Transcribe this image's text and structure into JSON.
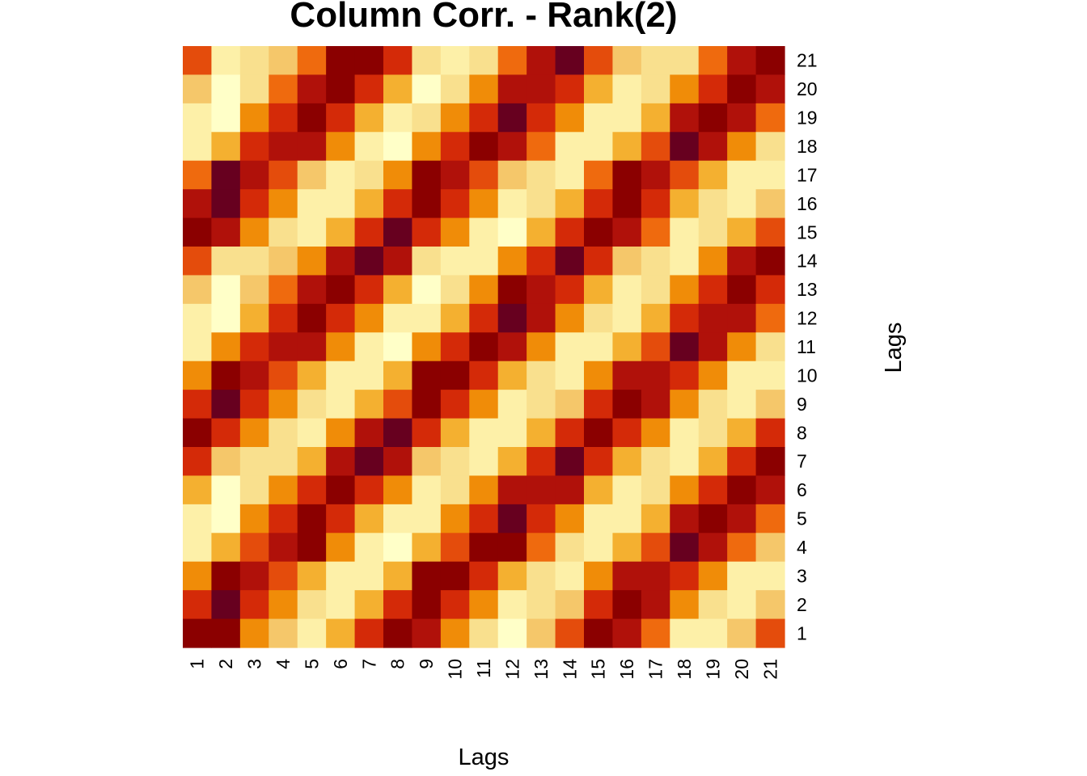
{
  "chart_data": {
    "type": "heatmap",
    "title": "Column Corr. - Rank(2)",
    "xlabel": "Lags",
    "ylabel": "Lags",
    "x_ticks": [
      "1",
      "2",
      "3",
      "4",
      "5",
      "6",
      "7",
      "8",
      "9",
      "10",
      "11",
      "12",
      "13",
      "14",
      "15",
      "16",
      "17",
      "18",
      "19",
      "20",
      "21"
    ],
    "y_ticks": [
      "1",
      "2",
      "3",
      "4",
      "5",
      "6",
      "7",
      "8",
      "9",
      "10",
      "11",
      "12",
      "13",
      "14",
      "15",
      "16",
      "17",
      "18",
      "19",
      "20",
      "21"
    ],
    "color_scale": [
      "#67001F",
      "#8B0000",
      "#B0110A",
      "#D42A08",
      "#E44C0C",
      "#EF6A0E",
      "#F08C08",
      "#F4B030",
      "#F5C76A",
      "#F9E08E",
      "#FDF0A8",
      "#FFFFC8"
    ],
    "color_scale_note": "heat colors: index 0 = darkest red, 11 = lightest yellow",
    "grid": false,
    "rows_top_to_bottom": [
      [
        4,
        10,
        9,
        8,
        5,
        1,
        1,
        3,
        9,
        10,
        9,
        5,
        2,
        0,
        4,
        8,
        9,
        9,
        5,
        2,
        1
      ],
      [
        8,
        11,
        9,
        5,
        2,
        1,
        3,
        7,
        11,
        9,
        6,
        2,
        2,
        3,
        7,
        10,
        9,
        6,
        3,
        1,
        2
      ],
      [
        10,
        11,
        6,
        3,
        1,
        3,
        7,
        10,
        9,
        6,
        3,
        0,
        3,
        6,
        10,
        10,
        7,
        2,
        1,
        2,
        5
      ],
      [
        10,
        7,
        3,
        2,
        2,
        6,
        10,
        11,
        6,
        3,
        1,
        2,
        5,
        10,
        10,
        7,
        4,
        0,
        2,
        6,
        9
      ],
      [
        5,
        0,
        2,
        4,
        8,
        10,
        9,
        6,
        1,
        2,
        4,
        8,
        9,
        10,
        5,
        1,
        2,
        4,
        7,
        10,
        10
      ],
      [
        2,
        0,
        3,
        6,
        10,
        10,
        7,
        3,
        1,
        3,
        6,
        10,
        9,
        7,
        3,
        1,
        3,
        7,
        9,
        10,
        8
      ],
      [
        1,
        2,
        6,
        9,
        10,
        7,
        3,
        0,
        3,
        6,
        10,
        11,
        7,
        3,
        1,
        2,
        5,
        10,
        9,
        7,
        4
      ],
      [
        4,
        9,
        9,
        8,
        6,
        2,
        0,
        2,
        9,
        10,
        10,
        6,
        3,
        0,
        3,
        8,
        9,
        10,
        6,
        2,
        1
      ],
      [
        8,
        11,
        8,
        5,
        2,
        1,
        3,
        7,
        11,
        9,
        6,
        1,
        2,
        3,
        7,
        10,
        9,
        6,
        3,
        1,
        3
      ],
      [
        10,
        11,
        7,
        3,
        1,
        3,
        6,
        10,
        10,
        7,
        3,
        0,
        2,
        6,
        9,
        10,
        7,
        3,
        2,
        2,
        5
      ],
      [
        10,
        6,
        3,
        2,
        2,
        6,
        10,
        11,
        6,
        3,
        1,
        2,
        6,
        10,
        10,
        7,
        4,
        0,
        2,
        6,
        9
      ],
      [
        6,
        1,
        2,
        4,
        7,
        10,
        10,
        7,
        1,
        1,
        3,
        7,
        9,
        10,
        6,
        2,
        2,
        3,
        6,
        10,
        10
      ],
      [
        3,
        0,
        3,
        6,
        9,
        10,
        7,
        4,
        1,
        3,
        6,
        10,
        9,
        8,
        3,
        1,
        2,
        6,
        9,
        10,
        8
      ],
      [
        1,
        3,
        6,
        9,
        10,
        6,
        2,
        0,
        3,
        7,
        10,
        10,
        7,
        3,
        1,
        3,
        6,
        10,
        9,
        7,
        3
      ],
      [
        3,
        8,
        9,
        9,
        7,
        2,
        0,
        2,
        8,
        9,
        10,
        7,
        3,
        0,
        3,
        7,
        9,
        10,
        7,
        3,
        1
      ],
      [
        7,
        11,
        9,
        6,
        3,
        1,
        3,
        6,
        10,
        9,
        6,
        2,
        2,
        2,
        7,
        10,
        9,
        6,
        3,
        1,
        2
      ],
      [
        10,
        11,
        6,
        3,
        1,
        3,
        7,
        10,
        10,
        6,
        3,
        0,
        3,
        6,
        10,
        10,
        7,
        2,
        1,
        2,
        5
      ],
      [
        10,
        7,
        4,
        2,
        1,
        6,
        10,
        11,
        7,
        4,
        1,
        1,
        5,
        9,
        10,
        7,
        4,
        0,
        2,
        5,
        8
      ],
      [
        6,
        1,
        2,
        4,
        7,
        10,
        10,
        7,
        1,
        1,
        3,
        7,
        9,
        10,
        6,
        2,
        2,
        3,
        6,
        10,
        10
      ],
      [
        3,
        0,
        3,
        6,
        9,
        10,
        7,
        3,
        1,
        3,
        6,
        10,
        9,
        8,
        3,
        1,
        2,
        6,
        9,
        10,
        8
      ],
      [
        1,
        1,
        6,
        8,
        10,
        7,
        3,
        1,
        2,
        6,
        9,
        11,
        8,
        4,
        1,
        2,
        5,
        10,
        10,
        8,
        4
      ]
    ]
  }
}
